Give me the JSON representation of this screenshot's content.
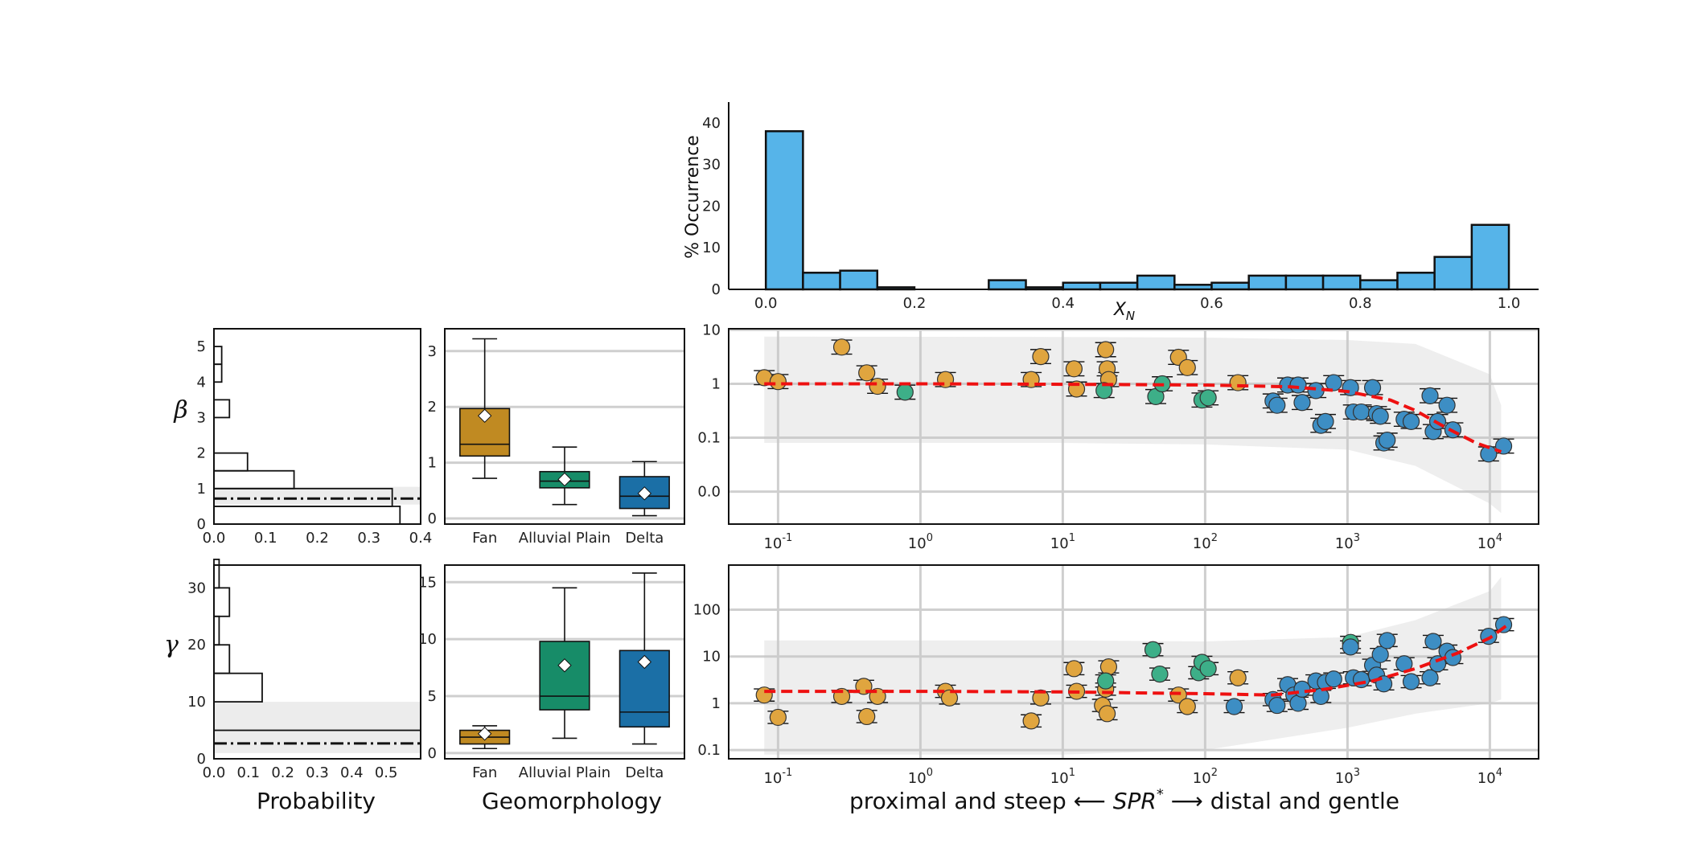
{
  "chart_data": [
    {
      "id": "xn-histogram",
      "type": "bar",
      "xlabel": "X",
      "xlabel_sub": "N",
      "ylabel": "% Occurrence",
      "xlim": [
        -0.05,
        1.04
      ],
      "ylim": [
        0,
        45
      ],
      "x_ticks": [
        "0.0",
        "0.2",
        "0.4",
        "0.6",
        "0.8",
        "1.0"
      ],
      "y_ticks": [
        "0",
        "10",
        "20",
        "30",
        "40"
      ],
      "bin_width": 0.05,
      "bin_starts": [
        0.0,
        0.05,
        0.1,
        0.15,
        0.3,
        0.35,
        0.4,
        0.45,
        0.5,
        0.55,
        0.6,
        0.65,
        0.7,
        0.75,
        0.8,
        0.85,
        0.9,
        0.95
      ],
      "values": [
        38,
        4,
        4.5,
        0.5,
        2.2,
        0.5,
        1.6,
        1.6,
        3.3,
        1.1,
        1.6,
        3.3,
        3.3,
        3.3,
        2.2,
        4,
        7.8,
        15.5
      ],
      "color": "#56b4e9"
    },
    {
      "id": "beta-probability",
      "type": "bar",
      "orientation": "horizontal",
      "ylabel": "β",
      "xlim": [
        0,
        0.4
      ],
      "ylim": [
        0,
        5.5
      ],
      "x_ticks": [
        "0.0",
        "0.1",
        "0.2",
        "0.3",
        "0.4"
      ],
      "y_ticks": [
        "0",
        "1",
        "2",
        "3",
        "4",
        "5"
      ],
      "bins": [
        [
          0,
          0.5
        ],
        [
          0.5,
          1
        ],
        [
          1,
          1.5
        ],
        [
          1.5,
          2
        ],
        [
          3,
          3.5
        ],
        [
          4,
          4.5
        ],
        [
          4.5,
          5
        ]
      ],
      "values": [
        0.36,
        0.345,
        0.155,
        0.065,
        0.03,
        0.015,
        0.015
      ],
      "median": 0.72,
      "band": [
        0.55,
        1.05
      ]
    },
    {
      "id": "gamma-probability",
      "type": "bar",
      "orientation": "horizontal",
      "ylabel": "γ",
      "xlabel": "Probability",
      "xlim": [
        0,
        0.6
      ],
      "ylim": [
        0,
        34
      ],
      "x_ticks": [
        "0.0",
        "0.1",
        "0.2",
        "0.3",
        "0.4",
        "0.5"
      ],
      "y_ticks": [
        "0",
        "10",
        "20",
        "30"
      ],
      "bins": [
        [
          0,
          5
        ],
        [
          10,
          15
        ],
        [
          15,
          20
        ],
        [
          20,
          25
        ],
        [
          25,
          30
        ],
        [
          30,
          35
        ]
      ],
      "values": [
        0.6,
        0.14,
        0.045,
        0.015,
        0.045,
        0.015
      ],
      "median": 2.7,
      "band": [
        1,
        10
      ]
    },
    {
      "id": "beta-geomorphology",
      "type": "box",
      "categories": [
        "Fan",
        "Alluvial Plain",
        "Delta"
      ],
      "colors": [
        "#c08a22",
        "#178c68",
        "#1b6fa6"
      ],
      "ylim": [
        -0.1,
        3.4
      ],
      "y_ticks": [
        "0",
        "1",
        "2",
        "3"
      ],
      "boxes": [
        {
          "whislo": 0.72,
          "q1": 1.12,
          "med": 1.33,
          "q3": 1.97,
          "whishi": 3.22,
          "mean": 1.84
        },
        {
          "whislo": 0.25,
          "q1": 0.55,
          "med": 0.67,
          "q3": 0.84,
          "whishi": 1.28,
          "mean": 0.7
        },
        {
          "whislo": 0.05,
          "q1": 0.18,
          "med": 0.4,
          "q3": 0.75,
          "whishi": 1.02,
          "mean": 0.45
        }
      ]
    },
    {
      "id": "gamma-geomorphology",
      "type": "box",
      "xlabel": "Geomorphology",
      "categories": [
        "Fan",
        "Alluvial Plain",
        "Delta"
      ],
      "colors": [
        "#c08a22",
        "#178c68",
        "#1b6fa6"
      ],
      "ylim": [
        -0.5,
        16.5
      ],
      "y_ticks": [
        "0",
        "5",
        "10",
        "15"
      ],
      "boxes": [
        {
          "whislo": 0.4,
          "q1": 0.8,
          "med": 1.4,
          "q3": 2.0,
          "whishi": 2.4,
          "mean": 1.7
        },
        {
          "whislo": 1.3,
          "q1": 3.8,
          "med": 5.0,
          "q3": 9.8,
          "whishi": 14.5,
          "mean": 7.7
        },
        {
          "whislo": 0.8,
          "q1": 2.3,
          "med": 3.6,
          "q3": 9.0,
          "whishi": 15.8,
          "mean": 8.0
        }
      ]
    },
    {
      "id": "beta-vs-spr",
      "type": "scatter",
      "x_scale": "log",
      "xlim": [
        0.045,
        22000
      ],
      "y_ticks": [
        "0.0",
        "0.1",
        "1",
        "10"
      ],
      "y_tick_positions": [
        0.01,
        0.1,
        1,
        10
      ],
      "ylim": [
        0.0025,
        10.5
      ],
      "x_ticks": [
        "10^-1",
        "10^0",
        "10^1",
        "10^2",
        "10^3",
        "10^4"
      ],
      "fit": [
        [
          0.08,
          1.0
        ],
        [
          1,
          1.0
        ],
        [
          10,
          0.98
        ],
        [
          100,
          0.95
        ],
        [
          400,
          0.88
        ],
        [
          1000,
          0.72
        ],
        [
          2000,
          0.5
        ],
        [
          3000,
          0.32
        ],
        [
          5000,
          0.15
        ],
        [
          8000,
          0.08
        ],
        [
          12000,
          0.055
        ]
      ],
      "band_upper": [
        [
          0.08,
          7.5
        ],
        [
          10,
          7.4
        ],
        [
          100,
          7.2
        ],
        [
          1000,
          6.5
        ],
        [
          3000,
          5.5
        ],
        [
          10000,
          1.5
        ],
        [
          12000,
          0.4
        ]
      ],
      "band_lower": [
        [
          0.08,
          0.08
        ],
        [
          10,
          0.08
        ],
        [
          100,
          0.075
        ],
        [
          1000,
          0.06
        ],
        [
          3000,
          0.03
        ],
        [
          10000,
          0.006
        ],
        [
          12000,
          0.004
        ]
      ],
      "groups": [
        {
          "name": "Fan",
          "color": "#e0a53f",
          "points": [
            [
              0.08,
              1.3
            ],
            [
              0.1,
              1.1
            ],
            [
              0.28,
              4.8
            ],
            [
              0.42,
              1.6
            ],
            [
              0.5,
              0.9
            ],
            [
              1.5,
              1.2
            ],
            [
              6,
              1.2
            ],
            [
              7,
              3.2
            ],
            [
              12,
              1.9
            ],
            [
              12.5,
              0.8
            ],
            [
              20,
              4.3
            ],
            [
              20.5,
              1.9
            ],
            [
              21,
              1.2
            ],
            [
              65,
              3.1
            ],
            [
              75,
              2.0
            ],
            [
              170,
              1.05
            ]
          ]
        },
        {
          "name": "Alluvial Plain",
          "color": "#3daf88",
          "points": [
            [
              0.78,
              0.7
            ],
            [
              19.5,
              0.75
            ],
            [
              45,
              0.58
            ],
            [
              50,
              1.0
            ],
            [
              95,
              0.5
            ],
            [
              105,
              0.55
            ]
          ]
        },
        {
          "name": "Delta",
          "color": "#3d8ec4",
          "points": [
            [
              300,
              0.48
            ],
            [
              320,
              0.4
            ],
            [
              380,
              0.95
            ],
            [
              450,
              0.95
            ],
            [
              480,
              0.45
            ],
            [
              600,
              0.75
            ],
            [
              650,
              0.17
            ],
            [
              700,
              0.2
            ],
            [
              800,
              1.05
            ],
            [
              1050,
              0.85
            ],
            [
              1100,
              0.3
            ],
            [
              1250,
              0.3
            ],
            [
              1500,
              0.85
            ],
            [
              1600,
              0.28
            ],
            [
              1700,
              0.25
            ],
            [
              1800,
              0.08
            ],
            [
              1900,
              0.09
            ],
            [
              2500,
              0.22
            ],
            [
              2800,
              0.2
            ],
            [
              3800,
              0.6
            ],
            [
              4000,
              0.13
            ],
            [
              4300,
              0.2
            ],
            [
              5000,
              0.4
            ],
            [
              5500,
              0.14
            ],
            [
              9800,
              0.05
            ],
            [
              12500,
              0.07
            ]
          ]
        }
      ]
    },
    {
      "id": "gamma-vs-spr",
      "type": "scatter",
      "x_scale": "log",
      "y_scale": "log",
      "xlabel_left": "proximal and steep ⟵",
      "xlabel_mid": "SPR",
      "xlabel_right": "⟶ distal and gentle",
      "xlim": [
        0.045,
        22000
      ],
      "ylim": [
        0.065,
        900
      ],
      "y_ticks": [
        "0.1",
        "1",
        "10",
        "100"
      ],
      "y_tick_positions": [
        0.1,
        1,
        10,
        100
      ],
      "x_ticks": [
        "10^-1",
        "10^0",
        "10^1",
        "10^2",
        "10^3",
        "10^4"
      ],
      "fit": [
        [
          0.08,
          1.8
        ],
        [
          1,
          1.8
        ],
        [
          10,
          1.75
        ],
        [
          100,
          1.6
        ],
        [
          300,
          1.5
        ],
        [
          700,
          2.0
        ],
        [
          1500,
          3.0
        ],
        [
          3000,
          5.5
        ],
        [
          6000,
          12
        ],
        [
          10000,
          25
        ],
        [
          13000,
          45
        ]
      ],
      "band_upper": [
        [
          0.08,
          22
        ],
        [
          10,
          22
        ],
        [
          100,
          21
        ],
        [
          1000,
          26
        ],
        [
          3000,
          60
        ],
        [
          10000,
          250
        ],
        [
          12000,
          500
        ]
      ],
      "band_lower": [
        [
          0.08,
          0.08
        ],
        [
          10,
          0.08
        ],
        [
          100,
          0.1
        ],
        [
          1000,
          0.3
        ],
        [
          3000,
          0.6
        ],
        [
          10000,
          1.0
        ],
        [
          12000,
          1.2
        ]
      ],
      "groups": [
        {
          "name": "Fan",
          "color": "#e0a53f",
          "points": [
            [
              0.08,
              1.5
            ],
            [
              0.1,
              0.5
            ],
            [
              0.28,
              1.4
            ],
            [
              0.4,
              2.3
            ],
            [
              0.42,
              0.52
            ],
            [
              0.5,
              1.4
            ],
            [
              1.5,
              1.8
            ],
            [
              1.6,
              1.3
            ],
            [
              6,
              0.42
            ],
            [
              7,
              1.3
            ],
            [
              12,
              5.5
            ],
            [
              12.5,
              1.8
            ],
            [
              19,
              0.9
            ],
            [
              20,
              2.0
            ],
            [
              20.5,
              0.6
            ],
            [
              21,
              6.0
            ],
            [
              65,
              1.5
            ],
            [
              75,
              0.85
            ],
            [
              170,
              3.5
            ]
          ]
        },
        {
          "name": "Alluvial Plain",
          "color": "#3daf88",
          "points": [
            [
              20,
              3.0
            ],
            [
              43,
              14
            ],
            [
              48,
              4.2
            ],
            [
              90,
              4.5
            ],
            [
              95,
              7.5
            ],
            [
              105,
              5.5
            ],
            [
              1050,
              20
            ]
          ]
        },
        {
          "name": "Delta",
          "color": "#3d8ec4",
          "points": [
            [
              160,
              0.85
            ],
            [
              300,
              1.2
            ],
            [
              320,
              0.9
            ],
            [
              380,
              2.5
            ],
            [
              420,
              1.5
            ],
            [
              450,
              1.0
            ],
            [
              480,
              2.0
            ],
            [
              600,
              3.0
            ],
            [
              650,
              1.4
            ],
            [
              700,
              2.8
            ],
            [
              800,
              3.3
            ],
            [
              1050,
              16
            ],
            [
              1100,
              3.5
            ],
            [
              1250,
              3.2
            ],
            [
              1500,
              6.5
            ],
            [
              1600,
              4.0
            ],
            [
              1700,
              11
            ],
            [
              1800,
              2.6
            ],
            [
              1900,
              22
            ],
            [
              2500,
              7.0
            ],
            [
              2800,
              2.9
            ],
            [
              3800,
              3.5
            ],
            [
              4000,
              21
            ],
            [
              4300,
              7.0
            ],
            [
              5000,
              13
            ],
            [
              5500,
              9.5
            ],
            [
              9800,
              27
            ],
            [
              12500,
              48
            ]
          ]
        }
      ]
    }
  ]
}
